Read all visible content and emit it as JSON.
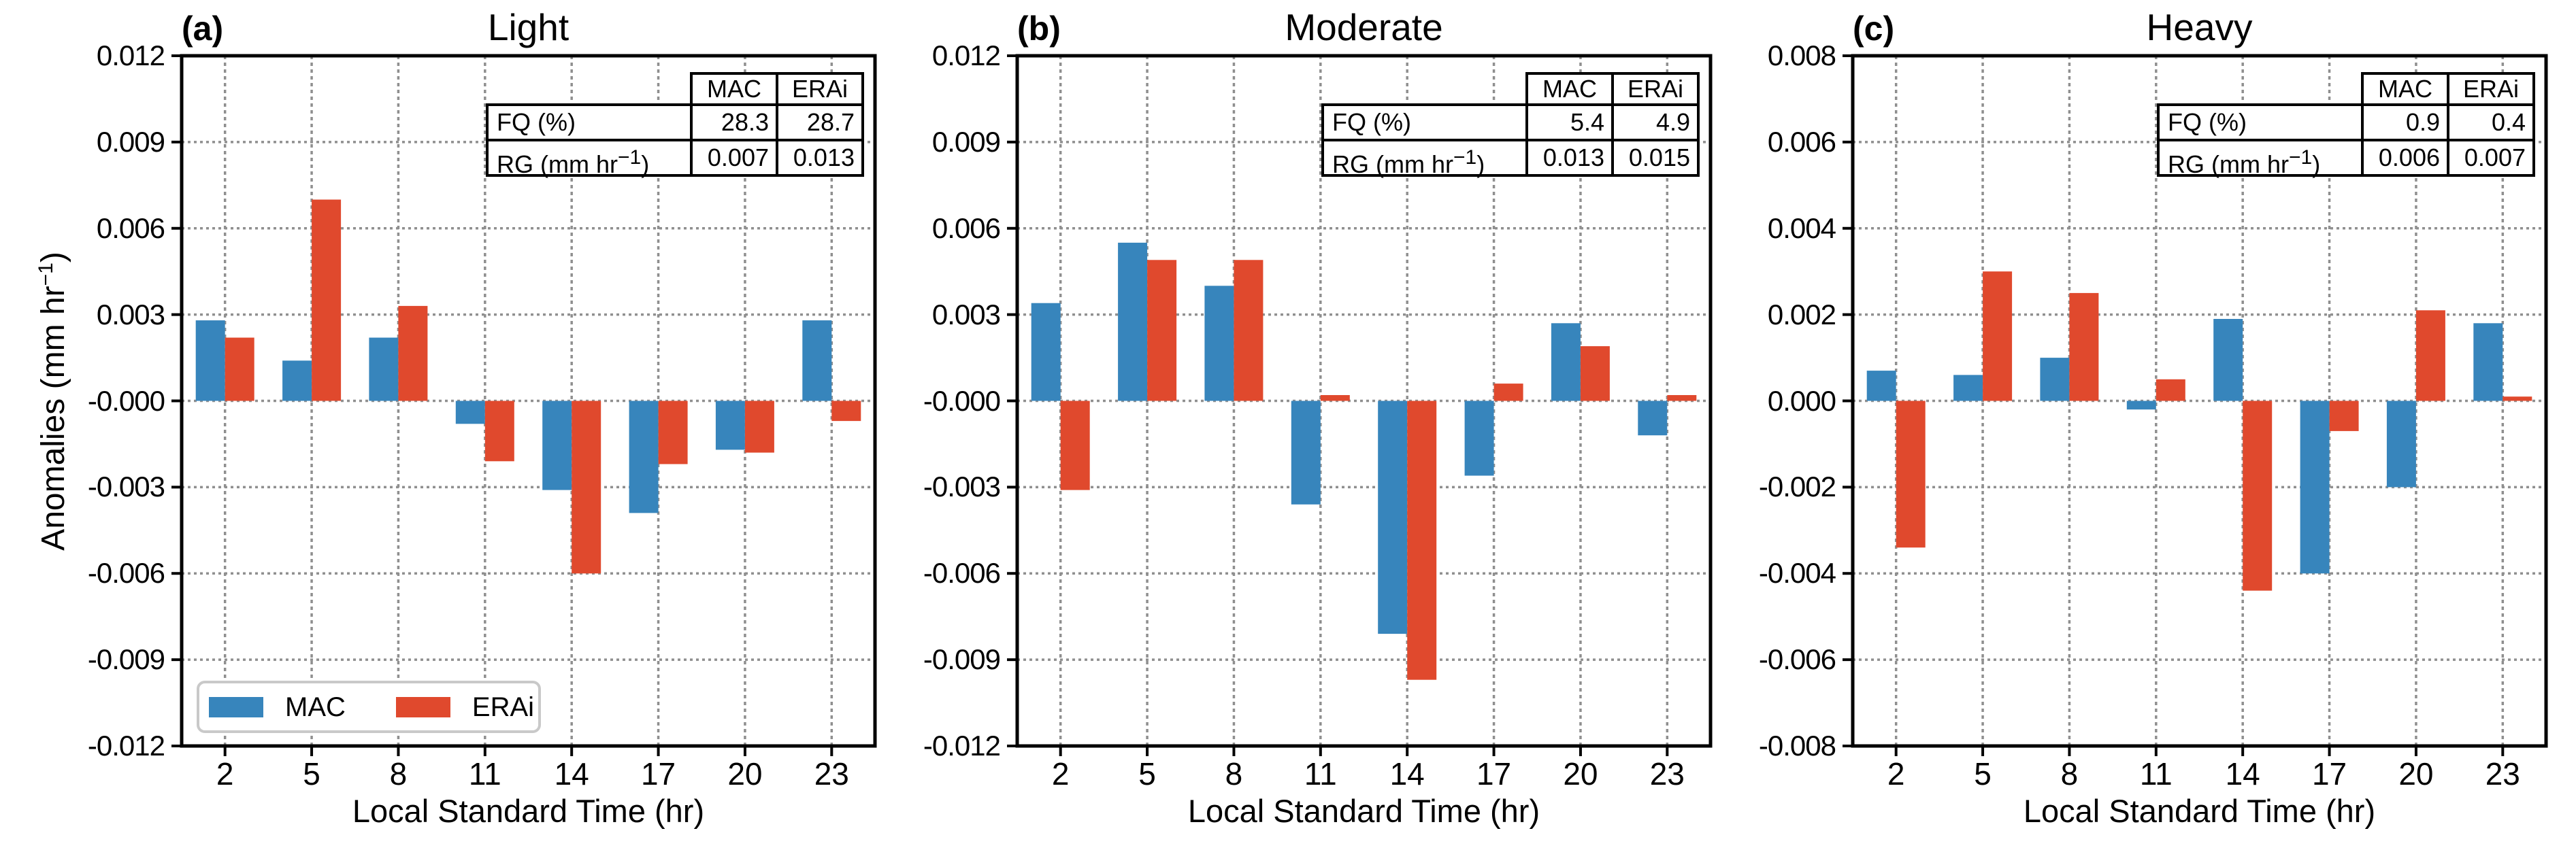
{
  "figure": {
    "ylabel": {
      "prefix": "Anomalies (mm hr",
      "sup": "−1",
      "suffix": ")"
    },
    "colors": {
      "mac": "#3785BC",
      "erai": "#E0492D",
      "grid": "#8F8F8F",
      "axis": "#000000",
      "legend_border": "#C9C9C9"
    }
  },
  "chart_data": [
    {
      "type": "bar",
      "panel_label": "(a)",
      "title": "Light",
      "xlabel": "Local Standard Time (hr)",
      "categories": [
        "2",
        "5",
        "8",
        "11",
        "14",
        "17",
        "20",
        "23"
      ],
      "series": [
        {
          "name": "MAC",
          "color": "#3785BC",
          "values": [
            0.0028,
            0.0014,
            0.0022,
            -0.0008,
            -0.0031,
            -0.0039,
            -0.0017,
            0.0028
          ]
        },
        {
          "name": "ERAi",
          "color": "#E0492D",
          "values": [
            0.0022,
            0.007,
            0.0033,
            -0.0021,
            -0.006,
            -0.0022,
            -0.0018,
            -0.0007
          ]
        }
      ],
      "ylim": [
        -0.012,
        0.012
      ],
      "ytick_step": 0.003,
      "ytick_labels": [
        "0.012",
        "0.009",
        "0.006",
        "0.003",
        "-0.000",
        "-0.003",
        "-0.006",
        "-0.009",
        "-0.012"
      ],
      "grid": true,
      "legend_position": "lower left",
      "stats_table": {
        "columns": [
          "MAC",
          "ERAi"
        ],
        "rows": [
          {
            "label": "FQ (%)",
            "values": [
              "28.3",
              "28.7"
            ]
          },
          {
            "label_prefix": "RG (mm hr",
            "label_sup": "−1",
            "label_suffix": ")",
            "values": [
              "0.007",
              "0.013"
            ]
          }
        ]
      }
    },
    {
      "type": "bar",
      "panel_label": "(b)",
      "title": "Moderate",
      "xlabel": "Local Standard Time (hr)",
      "categories": [
        "2",
        "5",
        "8",
        "11",
        "14",
        "17",
        "20",
        "23"
      ],
      "series": [
        {
          "name": "MAC",
          "color": "#3785BC",
          "values": [
            0.0034,
            0.0055,
            0.004,
            -0.0036,
            -0.0081,
            -0.0026,
            0.0027,
            -0.0012
          ]
        },
        {
          "name": "ERAi",
          "color": "#E0492D",
          "values": [
            -0.0031,
            0.0049,
            0.0049,
            0.0002,
            -0.0097,
            0.0006,
            0.0019,
            0.0002
          ]
        }
      ],
      "ylim": [
        -0.012,
        0.012
      ],
      "ytick_step": 0.003,
      "ytick_labels": [
        "0.012",
        "0.009",
        "0.006",
        "0.003",
        "-0.000",
        "-0.003",
        "-0.006",
        "-0.009",
        "-0.012"
      ],
      "grid": true,
      "legend_position": "none",
      "stats_table": {
        "columns": [
          "MAC",
          "ERAi"
        ],
        "rows": [
          {
            "label": "FQ (%)",
            "values": [
              "5.4",
              "4.9"
            ]
          },
          {
            "label_prefix": "RG (mm hr",
            "label_sup": "−1",
            "label_suffix": ")",
            "values": [
              "0.013",
              "0.015"
            ]
          }
        ]
      }
    },
    {
      "type": "bar",
      "panel_label": "(c)",
      "title": "Heavy",
      "xlabel": "Local Standard Time (hr)",
      "categories": [
        "2",
        "5",
        "8",
        "11",
        "14",
        "17",
        "20",
        "23"
      ],
      "series": [
        {
          "name": "MAC",
          "color": "#3785BC",
          "values": [
            0.0007,
            0.0006,
            0.001,
            -0.0002,
            0.0019,
            -0.004,
            -0.002,
            0.0018
          ]
        },
        {
          "name": "ERAi",
          "color": "#E0492D",
          "values": [
            -0.0034,
            0.003,
            0.0025,
            0.0005,
            -0.0044,
            -0.0007,
            0.0021,
            0.0001
          ]
        }
      ],
      "ylim": [
        -0.008,
        0.008
      ],
      "ytick_step": 0.002,
      "ytick_labels": [
        "0.008",
        "0.006",
        "0.004",
        "0.002",
        "0.000",
        "-0.002",
        "-0.004",
        "-0.006",
        "-0.008"
      ],
      "grid": true,
      "legend_position": "none",
      "stats_table": {
        "columns": [
          "MAC",
          "ERAi"
        ],
        "rows": [
          {
            "label": "FQ (%)",
            "values": [
              "0.9",
              "0.4"
            ]
          },
          {
            "label_prefix": "RG (mm hr",
            "label_sup": "−1",
            "label_suffix": ")",
            "values": [
              "0.006",
              "0.007"
            ]
          }
        ]
      }
    }
  ]
}
